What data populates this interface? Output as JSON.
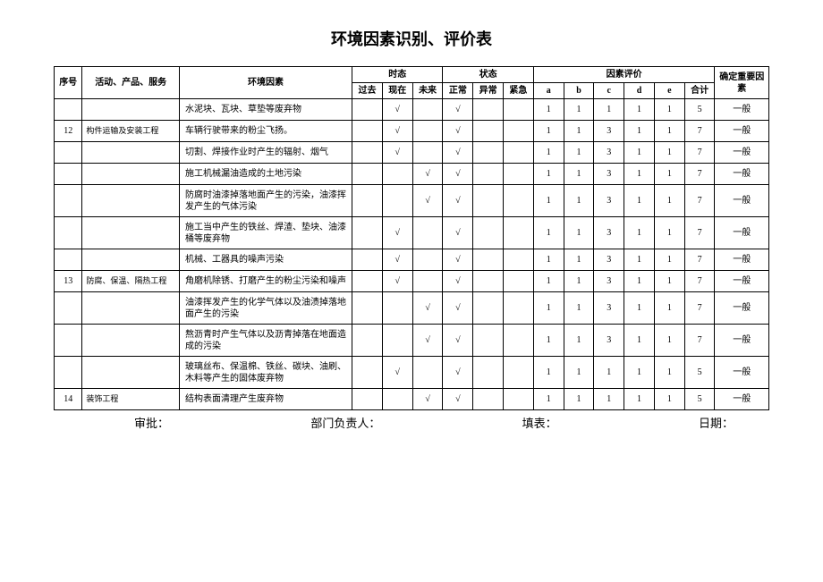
{
  "title": "环境因素识别、评价表",
  "headers": {
    "seq": "序号",
    "activity": "活动、产品、服务",
    "factor": "环境因素",
    "time_group": "时态",
    "state_group": "状态",
    "eval_group": "因素评价",
    "result_group": "确定重要因素",
    "time": {
      "past": "过去",
      "now": "现在",
      "future": "未来"
    },
    "state": {
      "normal": "正常",
      "abnormal": "异常",
      "emergency": "紧急"
    },
    "eval": {
      "a": "a",
      "b": "b",
      "c": "c",
      "d": "d",
      "e": "e",
      "total": "合计"
    }
  },
  "rows": [
    {
      "seq": "",
      "activity": "",
      "desc": "水泥块、瓦块、草垫等废弃物",
      "past": "",
      "now": "√",
      "future": "",
      "normal": "√",
      "abnormal": "",
      "emergency": "",
      "a": "1",
      "b": "1",
      "c": "1",
      "d": "1",
      "e": "1",
      "total": "5",
      "result": "一般"
    },
    {
      "seq": "12",
      "activity": "构件运输及安装工程",
      "desc": "车辆行驶带来的粉尘飞扬。",
      "past": "",
      "now": "√",
      "future": "",
      "normal": "√",
      "abnormal": "",
      "emergency": "",
      "a": "1",
      "b": "1",
      "c": "3",
      "d": "1",
      "e": "1",
      "total": "7",
      "result": "一般"
    },
    {
      "seq": "",
      "activity": "",
      "desc": "切割、焊接作业时产生的辐射、烟气",
      "past": "",
      "now": "√",
      "future": "",
      "normal": "√",
      "abnormal": "",
      "emergency": "",
      "a": "1",
      "b": "1",
      "c": "3",
      "d": "1",
      "e": "1",
      "total": "7",
      "result": "一般"
    },
    {
      "seq": "",
      "activity": "",
      "desc": "施工机械漏油造成的土地污染",
      "past": "",
      "now": "",
      "future": "√",
      "normal": "√",
      "abnormal": "",
      "emergency": "",
      "a": "1",
      "b": "1",
      "c": "3",
      "d": "1",
      "e": "1",
      "total": "7",
      "result": "一般"
    },
    {
      "seq": "",
      "activity": "",
      "desc": "防腐时油漆掉落地面产生的污染，油漆挥发产生的气体污染",
      "past": "",
      "now": "",
      "future": "√",
      "normal": "√",
      "abnormal": "",
      "emergency": "",
      "a": "1",
      "b": "1",
      "c": "3",
      "d": "1",
      "e": "1",
      "total": "7",
      "result": "一般",
      "tall": true
    },
    {
      "seq": "",
      "activity": "",
      "desc": "施工当中产生的铁丝、焊渣、垫块、油漆桶等废弃物",
      "past": "",
      "now": "√",
      "future": "",
      "normal": "√",
      "abnormal": "",
      "emergency": "",
      "a": "1",
      "b": "1",
      "c": "3",
      "d": "1",
      "e": "1",
      "total": "7",
      "result": "一般",
      "tall": true
    },
    {
      "seq": "",
      "activity": "",
      "desc": "机械、工器具的噪声污染",
      "past": "",
      "now": "√",
      "future": "",
      "normal": "√",
      "abnormal": "",
      "emergency": "",
      "a": "1",
      "b": "1",
      "c": "3",
      "d": "1",
      "e": "1",
      "total": "7",
      "result": "一般"
    },
    {
      "seq": "13",
      "activity": "防腐、保温、隔热工程",
      "desc": "角磨机除锈、打磨产生的粉尘污染和噪声",
      "past": "",
      "now": "√",
      "future": "",
      "normal": "√",
      "abnormal": "",
      "emergency": "",
      "a": "1",
      "b": "1",
      "c": "3",
      "d": "1",
      "e": "1",
      "total": "7",
      "result": "一般"
    },
    {
      "seq": "",
      "activity": "",
      "desc": "油漆挥发产生的化学气体以及油渍掉落地面产生的污染",
      "past": "",
      "now": "",
      "future": "√",
      "normal": "√",
      "abnormal": "",
      "emergency": "",
      "a": "1",
      "b": "1",
      "c": "3",
      "d": "1",
      "e": "1",
      "total": "7",
      "result": "一般",
      "tall": true
    },
    {
      "seq": "",
      "activity": "",
      "desc": "熬沥青时产生气体以及沥青掉落在地面造成的污染",
      "past": "",
      "now": "",
      "future": "√",
      "normal": "√",
      "abnormal": "",
      "emergency": "",
      "a": "1",
      "b": "1",
      "c": "3",
      "d": "1",
      "e": "1",
      "total": "7",
      "result": "一般",
      "tall": true
    },
    {
      "seq": "",
      "activity": "",
      "desc": "玻璃丝布、保温棉、铁丝、碳块、油刷、木料等产生的固体废弃物",
      "past": "",
      "now": "√",
      "future": "",
      "normal": "√",
      "abnormal": "",
      "emergency": "",
      "a": "1",
      "b": "1",
      "c": "1",
      "d": "1",
      "e": "1",
      "total": "5",
      "result": "一般",
      "tall": true
    },
    {
      "seq": "14",
      "activity": "装饰工程",
      "desc": "结构表面清理产生废弃物",
      "past": "",
      "now": "",
      "future": "√",
      "normal": "√",
      "abnormal": "",
      "emergency": "",
      "a": "1",
      "b": "1",
      "c": "1",
      "d": "1",
      "e": "1",
      "total": "5",
      "result": "一般"
    }
  ],
  "footer": {
    "approve": "审批：",
    "dept": "部门负责人：",
    "fill": "填表：",
    "date": "日期："
  },
  "style": {
    "background": "#ffffff",
    "border_color": "#000000",
    "title_fontsize": 18,
    "table_fontsize": 10,
    "footer_fontsize": 13
  }
}
